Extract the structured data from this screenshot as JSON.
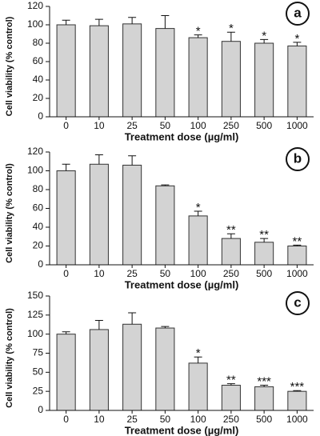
{
  "chart_data": [
    {
      "type": "bar",
      "panel_label": "a",
      "xlabel": "Treatment dose (µg/ml)",
      "ylabel": "Cell viability (% control)",
      "categories": [
        "0",
        "10",
        "25",
        "50",
        "100",
        "250",
        "500",
        "1000"
      ],
      "values": [
        100,
        99,
        101,
        96,
        86,
        82,
        80,
        77
      ],
      "errors": [
        5,
        7,
        7,
        14,
        3,
        10,
        4,
        4
      ],
      "significance": [
        null,
        null,
        null,
        null,
        "*",
        "*",
        "*",
        "*"
      ],
      "color": "#d3d3d3",
      "ylim": [
        0,
        120
      ],
      "yticks": [
        0,
        20,
        40,
        60,
        80,
        100,
        120
      ]
    },
    {
      "type": "bar",
      "panel_label": "b",
      "xlabel": "Treatment dose (µg/ml)",
      "ylabel": "Cell viability (% control)",
      "categories": [
        "0",
        "10",
        "25",
        "50",
        "100",
        "250",
        "500",
        "1000"
      ],
      "values": [
        100,
        107,
        106,
        84,
        52,
        28,
        24,
        20
      ],
      "errors": [
        7,
        10,
        10,
        1,
        5,
        5,
        4,
        1
      ],
      "significance": [
        null,
        null,
        null,
        null,
        "*",
        "**",
        "**",
        "**"
      ],
      "color": "#d3d3d3",
      "ylim": [
        0,
        120
      ],
      "yticks": [
        0,
        20,
        40,
        60,
        80,
        100,
        120
      ]
    },
    {
      "type": "bar",
      "panel_label": "c",
      "xlabel": "Treatment dose (µg/ml)",
      "ylabel": "Cell viability (% control)",
      "categories": [
        "0",
        "10",
        "25",
        "50",
        "100",
        "250",
        "500",
        "1000"
      ],
      "values": [
        100,
        106,
        113,
        108,
        62,
        33,
        31,
        25
      ],
      "errors": [
        3,
        12,
        15,
        2,
        8,
        2,
        2,
        1
      ],
      "significance": [
        null,
        null,
        null,
        null,
        "*",
        "**",
        "***",
        "***"
      ],
      "color": "#d3d3d3",
      "ylim": [
        0,
        150
      ],
      "yticks": [
        0,
        25,
        50,
        75,
        100,
        125,
        150
      ]
    }
  ]
}
